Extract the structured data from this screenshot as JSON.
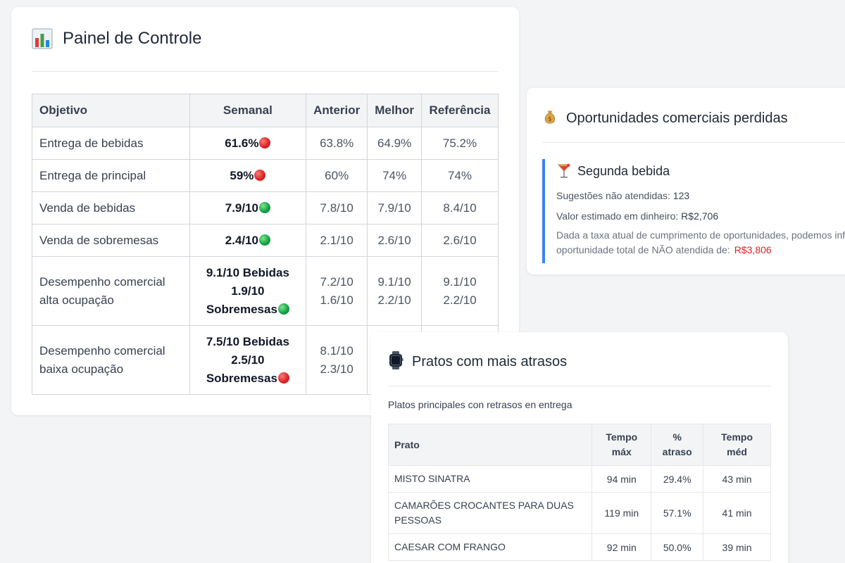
{
  "panel": {
    "title": "Painel de Controle",
    "icon": "bar-chart-icon",
    "columns": [
      "Objetivo",
      "Semanal",
      "Anterior",
      "Melhor",
      "Referência"
    ],
    "rows": [
      {
        "label": "Entrega de bebidas",
        "weekly": "61.6%",
        "status": "red",
        "previous": "63.8%",
        "best": "64.9%",
        "reference": "75.2%"
      },
      {
        "label": "Entrega de principal",
        "weekly": "59%",
        "status": "red",
        "previous": "60%",
        "best": "74%",
        "reference": "74%"
      },
      {
        "label": "Venda de bebidas",
        "weekly": "7.9/10",
        "status": "green",
        "previous": "7.8/10",
        "best": "7.9/10",
        "reference": "8.4/10"
      },
      {
        "label": "Venda de sobremesas",
        "weekly": "2.4/10",
        "status": "green",
        "previous": "2.1/10",
        "best": "2.6/10",
        "reference": "2.6/10"
      },
      {
        "label_l1": "Desempenho comercial",
        "label_l2": "alta ocupação",
        "weekly_l1": "9.1/10 Bebidas",
        "weekly_l2": "1.9/10",
        "weekly_l3": "Sobremesas",
        "status": "green",
        "previous_l1": "7.2/10",
        "previous_l2": "1.6/10",
        "best_l1": "9.1/10",
        "best_l2": "2.2/10",
        "reference_l1": "9.1/10",
        "reference_l2": "2.2/10"
      },
      {
        "label_l1": "Desempenho comercial",
        "label_l2": "baixa ocupação",
        "weekly_l1": "7.5/10 Bebidas",
        "weekly_l2": "2.5/10",
        "weekly_l3": "Sobremesas",
        "status": "red",
        "previous_l1": "8.1/10",
        "previous_l2": "2.3/10"
      }
    ]
  },
  "opportunities": {
    "title": "Oportunidades comerciais perdidas",
    "icon": "money-bag-icon",
    "section": {
      "title": "Segunda bebida",
      "icon": "cocktail-icon",
      "unmet_label": "Sugestões não atendidas:",
      "unmet_value": "123",
      "cash_label": "Valor estimado em dinheiro:",
      "cash_value": "R$2,706",
      "note_l1": "Dada a taxa atual de cumprimento de oportunidades, podemos inf",
      "note_l2": "oportunidade total de NÃO atendida de:",
      "note_value": "R$3,806"
    }
  },
  "dishes": {
    "title": "Pratos com mais atrasos",
    "icon": "watch-icon",
    "subtitle": "Platos principales con retrasos en entrega",
    "columns": {
      "dish": "Prato",
      "max_l1": "Tempo",
      "max_l2": "máx",
      "pct_l1": "%",
      "pct_l2": "atraso",
      "avg_l1": "Tempo",
      "avg_l2": "méd"
    },
    "rows": [
      {
        "dish": "MISTO SINATRA",
        "max": "94 min",
        "pct": "29.4%",
        "avg": "43 min"
      },
      {
        "dish_l1": "CAMARÕES CROCANTES PARA DUAS",
        "dish_l2": "PESSOAS",
        "max": "119 min",
        "pct": "57.1%",
        "avg": "41 min"
      },
      {
        "dish": "CAESAR COM FRANGO",
        "max": "92 min",
        "pct": "50.0%",
        "avg": "39 min"
      }
    ]
  },
  "colors": {
    "red_status": "#dc2626",
    "green_status": "#16a34a",
    "accent_border": "#3b82f6",
    "money_red": "#dc2626"
  }
}
